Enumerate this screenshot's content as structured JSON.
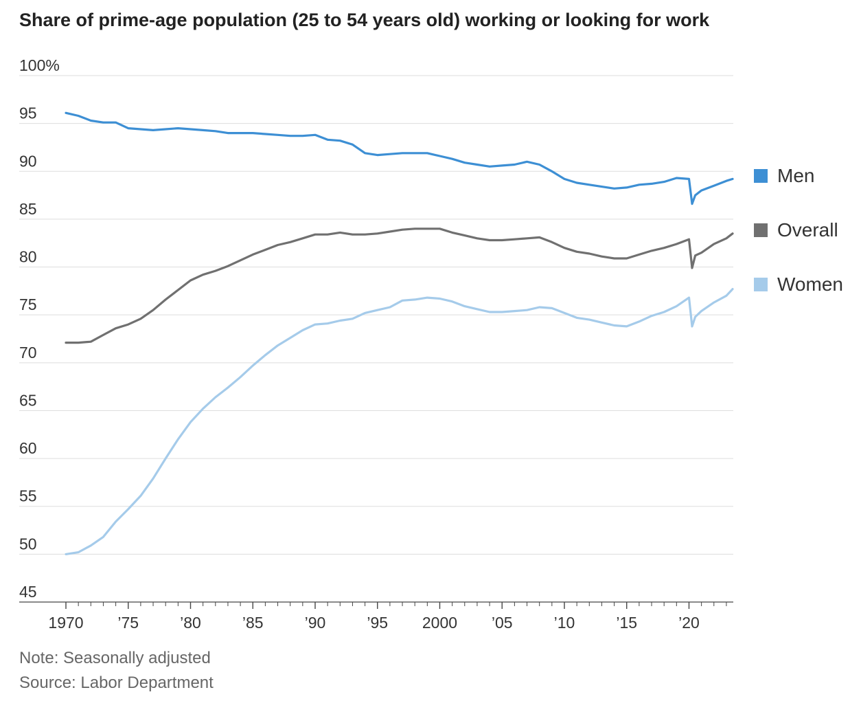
{
  "chart_data": {
    "type": "line",
    "title": "Share of prime-age population (25 to 54 years old) working or looking for work",
    "ylim": [
      45,
      100
    ],
    "xlim": [
      1970,
      2023.5
    ],
    "y_ticks": [
      {
        "value": 100,
        "label": "100%"
      },
      {
        "value": 95,
        "label": "95"
      },
      {
        "value": 90,
        "label": "90"
      },
      {
        "value": 85,
        "label": "85"
      },
      {
        "value": 80,
        "label": "80"
      },
      {
        "value": 75,
        "label": "75"
      },
      {
        "value": 70,
        "label": "70"
      },
      {
        "value": 65,
        "label": "65"
      },
      {
        "value": 60,
        "label": "60"
      },
      {
        "value": 55,
        "label": "55"
      },
      {
        "value": 50,
        "label": "50"
      },
      {
        "value": 45,
        "label": "45"
      }
    ],
    "x_ticks": [
      {
        "value": 1970,
        "label": "1970"
      },
      {
        "value": 1975,
        "label": "’75"
      },
      {
        "value": 1980,
        "label": "’80"
      },
      {
        "value": 1985,
        "label": "’85"
      },
      {
        "value": 1990,
        "label": "’90"
      },
      {
        "value": 1995,
        "label": "’95"
      },
      {
        "value": 2000,
        "label": "2000"
      },
      {
        "value": 2005,
        "label": "’05"
      },
      {
        "value": 2010,
        "label": "’10"
      },
      {
        "value": 2015,
        "label": "’15"
      },
      {
        "value": 2020,
        "label": "’20"
      }
    ],
    "grid": "horizontal",
    "legend_position": "right",
    "series": [
      {
        "name": "Men",
        "color": "#3d8fd4",
        "points": [
          [
            1970,
            96.1
          ],
          [
            1971,
            95.8
          ],
          [
            1972,
            95.3
          ],
          [
            1973,
            95.1
          ],
          [
            1974,
            95.1
          ],
          [
            1975,
            94.5
          ],
          [
            1976,
            94.4
          ],
          [
            1977,
            94.3
          ],
          [
            1978,
            94.4
          ],
          [
            1979,
            94.5
          ],
          [
            1980,
            94.4
          ],
          [
            1981,
            94.3
          ],
          [
            1982,
            94.2
          ],
          [
            1983,
            94.0
          ],
          [
            1984,
            94.0
          ],
          [
            1985,
            94.0
          ],
          [
            1986,
            93.9
          ],
          [
            1987,
            93.8
          ],
          [
            1988,
            93.7
          ],
          [
            1989,
            93.7
          ],
          [
            1990,
            93.8
          ],
          [
            1991,
            93.3
          ],
          [
            1992,
            93.2
          ],
          [
            1993,
            92.8
          ],
          [
            1994,
            91.9
          ],
          [
            1995,
            91.7
          ],
          [
            1996,
            91.8
          ],
          [
            1997,
            91.9
          ],
          [
            1998,
            91.9
          ],
          [
            1999,
            91.9
          ],
          [
            2000,
            91.6
          ],
          [
            2001,
            91.3
          ],
          [
            2002,
            90.9
          ],
          [
            2003,
            90.7
          ],
          [
            2004,
            90.5
          ],
          [
            2005,
            90.6
          ],
          [
            2006,
            90.7
          ],
          [
            2007,
            91.0
          ],
          [
            2008,
            90.7
          ],
          [
            2009,
            90.0
          ],
          [
            2010,
            89.2
          ],
          [
            2011,
            88.8
          ],
          [
            2012,
            88.6
          ],
          [
            2013,
            88.4
          ],
          [
            2014,
            88.2
          ],
          [
            2015,
            88.3
          ],
          [
            2016,
            88.6
          ],
          [
            2017,
            88.7
          ],
          [
            2018,
            88.9
          ],
          [
            2019,
            89.3
          ],
          [
            2020.0,
            89.2
          ],
          [
            2020.25,
            86.6
          ],
          [
            2020.5,
            87.5
          ],
          [
            2021,
            88.0
          ],
          [
            2022,
            88.5
          ],
          [
            2023,
            89.0
          ],
          [
            2023.5,
            89.2
          ]
        ]
      },
      {
        "name": "Overall",
        "color": "#707070",
        "points": [
          [
            1970,
            72.1
          ],
          [
            1971,
            72.1
          ],
          [
            1972,
            72.2
          ],
          [
            1973,
            72.9
          ],
          [
            1974,
            73.6
          ],
          [
            1975,
            74.0
          ],
          [
            1976,
            74.6
          ],
          [
            1977,
            75.5
          ],
          [
            1978,
            76.6
          ],
          [
            1979,
            77.6
          ],
          [
            1980,
            78.6
          ],
          [
            1981,
            79.2
          ],
          [
            1982,
            79.6
          ],
          [
            1983,
            80.1
          ],
          [
            1984,
            80.7
          ],
          [
            1985,
            81.3
          ],
          [
            1986,
            81.8
          ],
          [
            1987,
            82.3
          ],
          [
            1988,
            82.6
          ],
          [
            1989,
            83.0
          ],
          [
            1990,
            83.4
          ],
          [
            1991,
            83.4
          ],
          [
            1992,
            83.6
          ],
          [
            1993,
            83.4
          ],
          [
            1994,
            83.4
          ],
          [
            1995,
            83.5
          ],
          [
            1996,
            83.7
          ],
          [
            1997,
            83.9
          ],
          [
            1998,
            84.0
          ],
          [
            1999,
            84.0
          ],
          [
            2000,
            84.0
          ],
          [
            2001,
            83.6
          ],
          [
            2002,
            83.3
          ],
          [
            2003,
            83.0
          ],
          [
            2004,
            82.8
          ],
          [
            2005,
            82.8
          ],
          [
            2006,
            82.9
          ],
          [
            2007,
            83.0
          ],
          [
            2008,
            83.1
          ],
          [
            2009,
            82.6
          ],
          [
            2010,
            82.0
          ],
          [
            2011,
            81.6
          ],
          [
            2012,
            81.4
          ],
          [
            2013,
            81.1
          ],
          [
            2014,
            80.9
          ],
          [
            2015,
            80.9
          ],
          [
            2016,
            81.3
          ],
          [
            2017,
            81.7
          ],
          [
            2018,
            82.0
          ],
          [
            2019,
            82.4
          ],
          [
            2020.0,
            82.9
          ],
          [
            2020.25,
            79.9
          ],
          [
            2020.5,
            81.2
          ],
          [
            2021,
            81.5
          ],
          [
            2022,
            82.4
          ],
          [
            2023,
            83.0
          ],
          [
            2023.5,
            83.5
          ]
        ]
      },
      {
        "name": "Women",
        "color": "#a5cbea",
        "points": [
          [
            1970,
            50.0
          ],
          [
            1971,
            50.2
          ],
          [
            1972,
            50.9
          ],
          [
            1973,
            51.8
          ],
          [
            1974,
            53.4
          ],
          [
            1975,
            54.7
          ],
          [
            1976,
            56.1
          ],
          [
            1977,
            57.9
          ],
          [
            1978,
            60.0
          ],
          [
            1979,
            62.0
          ],
          [
            1980,
            63.8
          ],
          [
            1981,
            65.2
          ],
          [
            1982,
            66.4
          ],
          [
            1983,
            67.4
          ],
          [
            1984,
            68.5
          ],
          [
            1985,
            69.7
          ],
          [
            1986,
            70.8
          ],
          [
            1987,
            71.8
          ],
          [
            1988,
            72.6
          ],
          [
            1989,
            73.4
          ],
          [
            1990,
            74.0
          ],
          [
            1991,
            74.1
          ],
          [
            1992,
            74.4
          ],
          [
            1993,
            74.6
          ],
          [
            1994,
            75.2
          ],
          [
            1995,
            75.5
          ],
          [
            1996,
            75.8
          ],
          [
            1997,
            76.5
          ],
          [
            1998,
            76.6
          ],
          [
            1999,
            76.8
          ],
          [
            2000,
            76.7
          ],
          [
            2001,
            76.4
          ],
          [
            2002,
            75.9
          ],
          [
            2003,
            75.6
          ],
          [
            2004,
            75.3
          ],
          [
            2005,
            75.3
          ],
          [
            2006,
            75.4
          ],
          [
            2007,
            75.5
          ],
          [
            2008,
            75.8
          ],
          [
            2009,
            75.7
          ],
          [
            2010,
            75.2
          ],
          [
            2011,
            74.7
          ],
          [
            2012,
            74.5
          ],
          [
            2013,
            74.2
          ],
          [
            2014,
            73.9
          ],
          [
            2015,
            73.8
          ],
          [
            2016,
            74.3
          ],
          [
            2017,
            74.9
          ],
          [
            2018,
            75.3
          ],
          [
            2019,
            75.9
          ],
          [
            2020.0,
            76.8
          ],
          [
            2020.25,
            73.8
          ],
          [
            2020.5,
            74.8
          ],
          [
            2021,
            75.4
          ],
          [
            2022,
            76.3
          ],
          [
            2023,
            77.0
          ],
          [
            2023.5,
            77.7
          ]
        ]
      }
    ]
  },
  "note": "Note: Seasonally adjusted",
  "source": "Source: Labor Department"
}
